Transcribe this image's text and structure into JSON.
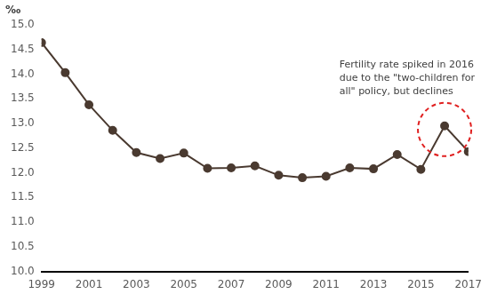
{
  "chart_data": {
    "type": "line",
    "y_label": "‰",
    "x": [
      1999,
      2000,
      2001,
      2002,
      2003,
      2004,
      2005,
      2006,
      2007,
      2008,
      2009,
      2010,
      2011,
      2012,
      2013,
      2014,
      2015,
      2016,
      2017
    ],
    "values": [
      14.64,
      14.03,
      13.38,
      12.86,
      12.41,
      12.29,
      12.4,
      12.09,
      12.1,
      12.14,
      11.95,
      11.9,
      11.93,
      12.1,
      12.08,
      12.37,
      12.07,
      12.95,
      12.43
    ],
    "color": "#4a3a30",
    "marker": "circle",
    "xlim": [
      1999,
      2017
    ],
    "xticks": [
      1999,
      2001,
      2003,
      2005,
      2007,
      2009,
      2011,
      2013,
      2015,
      2017
    ],
    "ylim": [
      10,
      15
    ],
    "yticks": [
      {
        "value": 10,
        "label": "10.0"
      },
      {
        "value": 10.5,
        "label": "10.5"
      },
      {
        "value": 11,
        "label": "11.0"
      },
      {
        "value": 11.5,
        "label": "11.5"
      },
      {
        "value": 12,
        "label": "12.0"
      },
      {
        "value": 12.5,
        "label": "12.5"
      },
      {
        "value": 13,
        "label": "13.0"
      },
      {
        "value": 13.5,
        "label": "13.5"
      },
      {
        "value": 14,
        "label": "14.0"
      },
      {
        "value": 14.5,
        "label": "14.5"
      },
      {
        "value": 15,
        "label": "15.0"
      }
    ],
    "grid": false,
    "annotations": [
      {
        "text": [
          "Fertility rate spiked in 2016",
          "due to the \"two-children for",
          "all\" policy, but declines"
        ],
        "x": 2016
      }
    ]
  }
}
